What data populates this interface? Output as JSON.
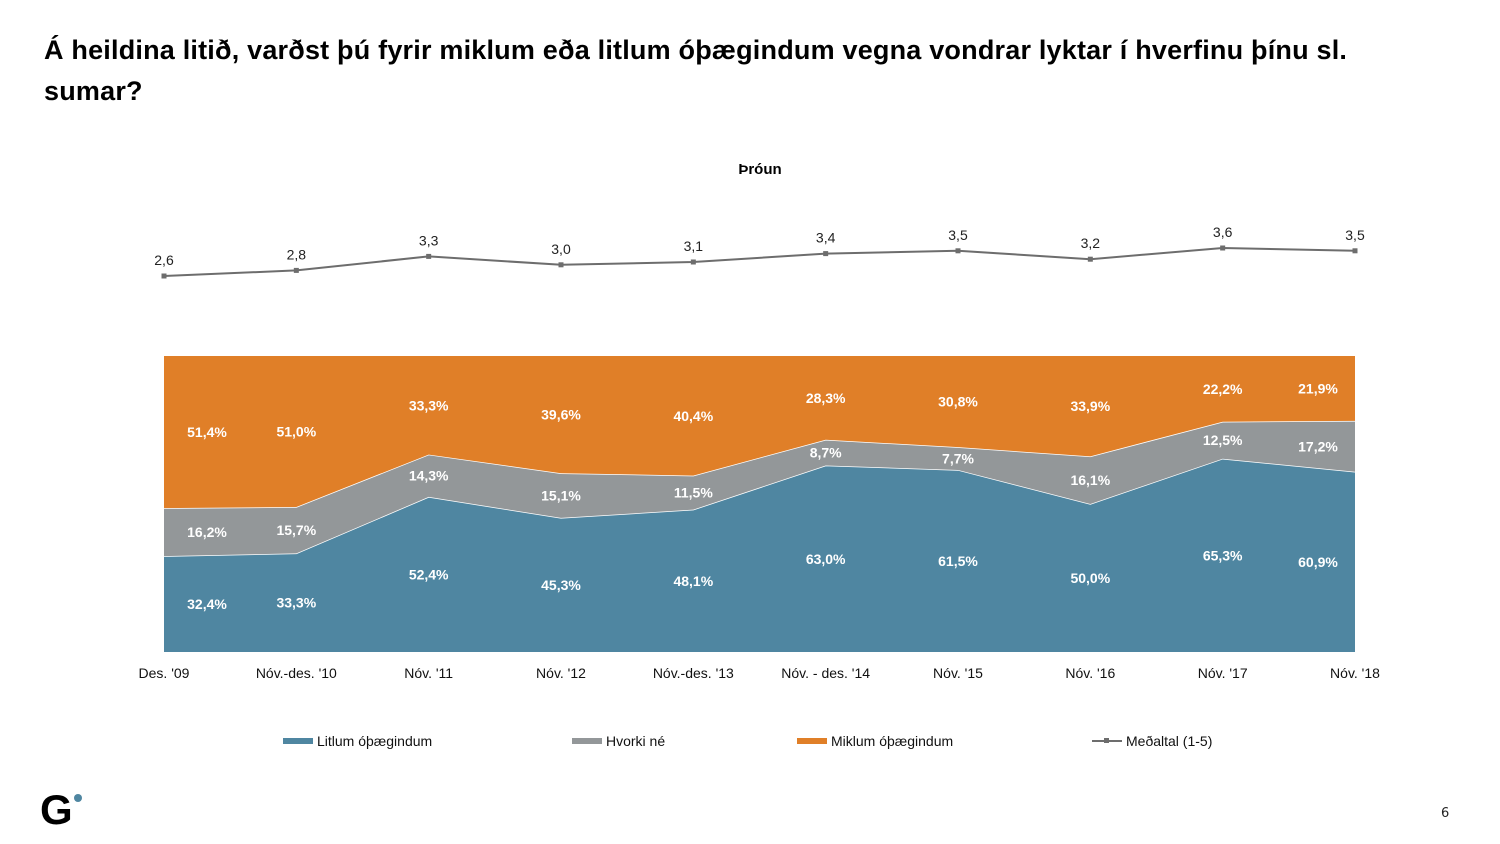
{
  "page": {
    "title": "Á heildina litið, varðst þú fyrir miklum eða litlum óþægindum vegna vondrar lyktar í hverfinu þínu sl. sumar?",
    "page_number": "6",
    "logo_text": "G"
  },
  "colors": {
    "litlum": "#4f86a1",
    "hvorki": "#939799",
    "miklum": "#e07f28",
    "average_line": "#6d6d6d",
    "logo_dot": "#4f86a1"
  },
  "chart_data": {
    "type": "area",
    "stacked": "100%",
    "title": "Þróun",
    "categories": [
      "Des. '09",
      "Nóv.-des. '10",
      "Nóv. '11",
      "Nóv. '12",
      "Nóv.-des. '13",
      "Nóv. - des. '14",
      "Nóv. '15",
      "Nóv. '16",
      "Nóv. '17",
      "Nóv. '18"
    ],
    "series": [
      {
        "name": "Litlum óþægindum",
        "key": "litlum",
        "values": [
          32.4,
          33.3,
          52.4,
          45.3,
          48.1,
          63.0,
          61.5,
          50.0,
          65.3,
          60.9
        ],
        "labels": [
          "32,4%",
          "33,3%",
          "52,4%",
          "45,3%",
          "48,1%",
          "63,0%",
          "61,5%",
          "50,0%",
          "65,3%",
          "60,9%"
        ]
      },
      {
        "name": "Hvorki né",
        "key": "hvorki",
        "values": [
          16.2,
          15.7,
          14.3,
          15.1,
          11.5,
          8.7,
          7.7,
          16.1,
          12.5,
          17.2
        ],
        "labels": [
          "16,2%",
          "15,7%",
          "14,3%",
          "15,1%",
          "11,5%",
          "8,7%",
          "7,7%",
          "16,1%",
          "12,5%",
          "17,2%"
        ]
      },
      {
        "name": "Miklum óþægindum",
        "key": "miklum",
        "values": [
          51.4,
          51.0,
          33.3,
          39.6,
          40.4,
          28.3,
          30.8,
          33.9,
          22.2,
          21.9
        ],
        "labels": [
          "51,4%",
          "51,0%",
          "33,3%",
          "39,6%",
          "40,4%",
          "28,3%",
          "30,8%",
          "33,9%",
          "22,2%",
          "21,9%"
        ]
      }
    ],
    "average": {
      "name": "Meðaltal (1-5)",
      "type": "line",
      "values": [
        2.6,
        2.8,
        3.3,
        3.0,
        3.1,
        3.4,
        3.5,
        3.2,
        3.6,
        3.5
      ],
      "labels": [
        "2,6",
        "2,8",
        "3,3",
        "3,0",
        "3,1",
        "3,4",
        "3,5",
        "3,2",
        "3,6",
        "3,5"
      ]
    },
    "ylim": [
      0,
      100
    ],
    "xlabel": "",
    "ylabel": "",
    "grid": false,
    "legend_position": "bottom"
  },
  "legend": [
    {
      "label": "Litlum óþægindum",
      "kind": "swatch",
      "key": "litlum"
    },
    {
      "label": "Hvorki né",
      "kind": "swatch",
      "key": "hvorki"
    },
    {
      "label": "Miklum óþægindum",
      "kind": "swatch",
      "key": "miklum"
    },
    {
      "label": "Meðaltal (1-5)",
      "kind": "line",
      "key": "average_line"
    }
  ]
}
